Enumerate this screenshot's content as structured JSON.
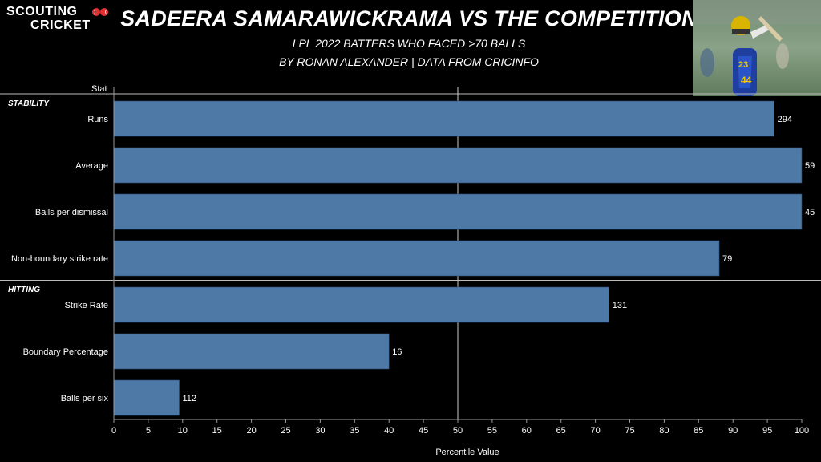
{
  "logo": {
    "line1": "SCOUTING",
    "line2": "CRICKET"
  },
  "header": {
    "title": "SADEERA SAMARAWICKRAMA VS THE COMPETITION",
    "subtitle": "LPL 2022 BATTERS WHO FACED >70 BALLS",
    "byline": "BY RONAN ALEXANDER | DATA FROM CRICINFO"
  },
  "colors": {
    "bar": "#4e79a7",
    "background": "#000000",
    "text": "#ffffff",
    "grid": "#cccccc"
  },
  "chart_data": {
    "type": "bar",
    "orientation": "horizontal",
    "row_header": "Stat",
    "xlabel": "Percentile Value",
    "xlim": [
      0,
      100
    ],
    "xticks": [
      0,
      5,
      10,
      15,
      20,
      25,
      30,
      35,
      40,
      45,
      50,
      55,
      60,
      65,
      70,
      75,
      80,
      85,
      90,
      95,
      100
    ],
    "reference_line": 50,
    "groups": [
      {
        "name": "STABILITY",
        "rows": [
          {
            "label": "Runs",
            "percentile": 96,
            "value_label": "294"
          },
          {
            "label": "Average",
            "percentile": 100,
            "value_label": "59"
          },
          {
            "label": "Balls per dismissal",
            "percentile": 100,
            "value_label": "45"
          },
          {
            "label": "Non-boundary strike rate",
            "percentile": 88,
            "value_label": "79"
          }
        ]
      },
      {
        "name": "HITTING",
        "rows": [
          {
            "label": "Strike Rate",
            "percentile": 72,
            "value_label": "131"
          },
          {
            "label": "Boundary Percentage",
            "percentile": 40,
            "value_label": "16"
          },
          {
            "label": "Balls per six",
            "percentile": 9.5,
            "value_label": "112"
          }
        ]
      }
    ]
  }
}
